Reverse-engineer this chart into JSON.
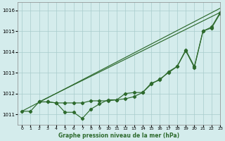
{
  "title": "",
  "xlabel": "Graphe pression niveau de la mer (hPa)",
  "ylabel": "",
  "bg_color": "#d4ecec",
  "grid_color": "#a8cccc",
  "line_color": "#2d6a2d",
  "xlim": [
    -0.5,
    23
  ],
  "ylim": [
    1010.5,
    1016.4
  ],
  "yticks": [
    1011,
    1012,
    1013,
    1014,
    1015,
    1016
  ],
  "xticks": [
    0,
    1,
    2,
    3,
    4,
    5,
    6,
    7,
    8,
    9,
    10,
    11,
    12,
    13,
    14,
    15,
    16,
    17,
    18,
    19,
    20,
    21,
    22,
    23
  ],
  "line1_x": [
    0,
    1,
    2,
    3,
    4,
    5,
    6,
    7,
    8,
    9,
    10,
    11,
    12,
    13,
    14,
    15,
    16,
    17,
    18,
    19,
    20,
    21,
    22,
    23
  ],
  "line1_y": [
    1011.15,
    1011.15,
    1011.6,
    1011.6,
    1011.55,
    1011.1,
    1011.1,
    1010.8,
    1011.25,
    1011.5,
    1011.7,
    1011.7,
    1012.0,
    1012.05,
    1012.05,
    1012.45,
    1012.7,
    1013.0,
    1013.3,
    1014.05,
    1013.25,
    1015.0,
    1015.15,
    1015.85
  ],
  "line2_x": [
    2,
    3,
    4,
    5,
    6,
    7,
    8,
    9,
    10,
    11,
    12,
    13,
    14,
    15,
    16,
    17,
    18,
    19,
    20,
    21,
    22,
    23
  ],
  "line2_y": [
    1011.6,
    1011.6,
    1011.55,
    1011.55,
    1011.55,
    1011.55,
    1011.65,
    1011.65,
    1011.65,
    1011.7,
    1011.75,
    1011.85,
    1012.05,
    1012.5,
    1012.65,
    1013.05,
    1013.3,
    1014.1,
    1013.3,
    1015.0,
    1015.2,
    1015.9
  ],
  "line3_x": [
    0,
    23
  ],
  "line3_y": [
    1011.15,
    1016.1
  ],
  "line4_x": [
    2,
    23
  ],
  "line4_y": [
    1011.6,
    1015.9
  ]
}
